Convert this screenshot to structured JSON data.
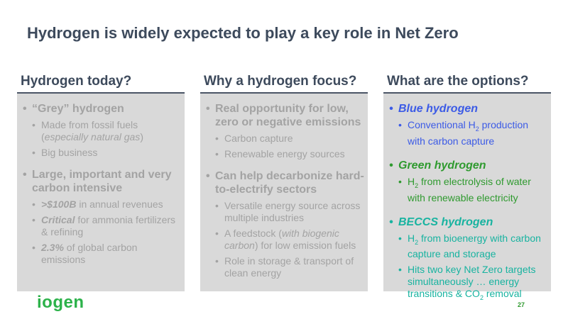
{
  "title": "Hydrogen is widely expected to play a key role in Net Zero",
  "columns": [
    {
      "heading": "Hydrogen today?",
      "b1a": "“Grey” hydrogen",
      "s1a": "Made from fossil fuels (",
      "s1a_it": "especially natural gas",
      "s1a_end": ")",
      "s1b": "Big business",
      "b1b": "Large, important and very carbon intensive",
      "s2a_bi": ">$100B",
      "s2a": " in annual revenues",
      "s2b_bi": "Critical",
      "s2b": " for ammonia fertilizers & refining",
      "s2c_bi": "2.3%",
      "s2c": " of global carbon emissions"
    },
    {
      "heading": "Why a hydrogen focus?",
      "b1a": "Real opportunity for low, zero or negative emissions",
      "s1a": "Carbon capture",
      "s1b": "Renewable energy sources",
      "b1b": "Can help decarbonize hard-to-electrify sectors",
      "s2a": "Versatile energy source across multiple industries",
      "s2b_pre": "A feedstock (",
      "s2b_it": "with biogenic carbon",
      "s2b_post": ") for low emission fuels",
      "s2c": "Role in storage & transport of clean energy"
    },
    {
      "heading": "What are the options?",
      "blue": "Blue hydrogen",
      "blue_sub_pre": "Conventional H",
      "blue_sub_n": "2",
      "blue_sub_post": " production with carbon capture",
      "green": "Green hydrogen",
      "green_sub_pre": "H",
      "green_sub_n": "2",
      "green_sub_post": " from electrolysis of water with renewable electricity",
      "beccs": "BECCS hydrogen",
      "beccs_s1_pre": "H",
      "beccs_s1_n": "2",
      "beccs_s1_post": " from bioenergy with carbon capture and storage",
      "beccs_s2_pre": "Hits two key Net Zero targets simultaneously … energy transitions & CO",
      "beccs_s2_n": "2",
      "beccs_s2_post": " removal"
    }
  ],
  "colors": {
    "blue": "#3c5be6",
    "green": "#2f9a2f",
    "teal": "#18b3a0",
    "heading": "#3d4a5c",
    "box": "#d9d9d9"
  },
  "logo": "iogen",
  "page_number": "27"
}
